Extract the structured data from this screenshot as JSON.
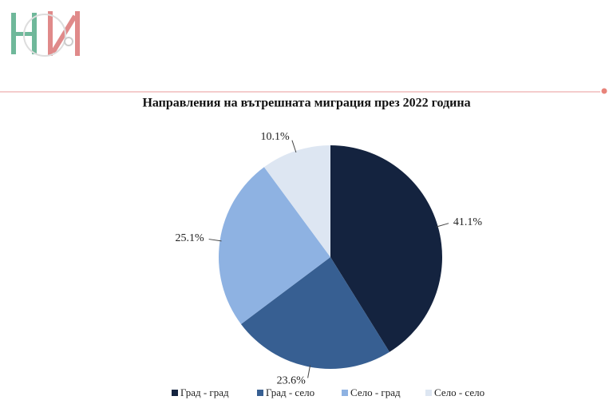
{
  "chart_data": {
    "type": "pie",
    "title": "Направления на вътрешната миграция през 2022 година",
    "categories": [
      "Град - град",
      "Град - село",
      "Село - град",
      "Село - село"
    ],
    "values": [
      41.1,
      23.6,
      25.1,
      10.1
    ],
    "value_labels": [
      "41.1%",
      "23.6%",
      "25.1%",
      "10.1%"
    ],
    "colors": [
      "#14233f",
      "#375f92",
      "#8eb2e2",
      "#dde6f2"
    ],
    "legend": "bottom"
  }
}
